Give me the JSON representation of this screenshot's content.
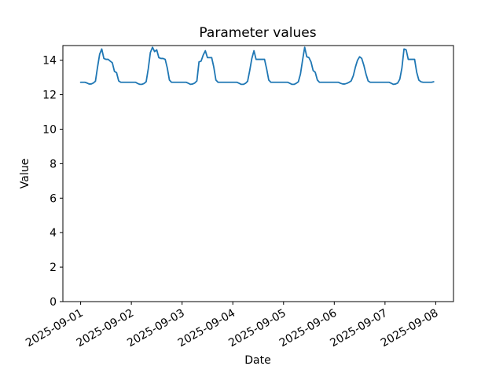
{
  "figure": {
    "background": "#ffffff",
    "frame_color": "#000000",
    "text_color": "#000000"
  },
  "chart_data": {
    "type": "line",
    "title": "Parameter values",
    "xlabel": "Date",
    "ylabel": "Value",
    "grid": false,
    "legend": "none",
    "line_color": "#1f77b4",
    "line_width": 1.8,
    "ylim": [
      0,
      14.85
    ],
    "xlim_hours": [
      -8.4,
      176.4
    ],
    "y_ticks": [
      0,
      2,
      4,
      6,
      8,
      10,
      12,
      14
    ],
    "x_tick_hours": [
      0,
      24,
      48,
      72,
      96,
      120,
      144,
      168
    ],
    "x_tick_labels": [
      "2025-09-01",
      "2025-09-02",
      "2025-09-03",
      "2025-09-04",
      "2025-09-05",
      "2025-09-06",
      "2025-09-07",
      "2025-09-08"
    ],
    "x_start": "2025-09-01 00:00",
    "x_step_hours": 1,
    "series": [
      {
        "values": [
          12.72,
          12.72,
          12.72,
          12.68,
          12.62,
          12.62,
          12.68,
          12.78,
          13.6,
          14.35,
          14.65,
          14.1,
          14.05,
          14.05,
          13.95,
          13.85,
          13.35,
          13.28,
          12.8,
          12.72,
          12.72,
          12.72,
          12.72,
          12.72,
          12.72,
          12.72,
          12.72,
          12.65,
          12.6,
          12.6,
          12.65,
          12.75,
          13.5,
          14.45,
          14.75,
          14.5,
          14.6,
          14.15,
          14.1,
          14.1,
          14.05,
          13.55,
          12.85,
          12.72,
          12.72,
          12.72,
          12.72,
          12.72,
          12.72,
          12.72,
          12.72,
          12.66,
          12.6,
          12.62,
          12.68,
          12.8,
          13.9,
          13.95,
          14.3,
          14.55,
          14.15,
          14.15,
          14.15,
          13.6,
          12.85,
          12.72,
          12.72,
          12.72,
          12.72,
          12.72,
          12.72,
          12.72,
          12.72,
          12.72,
          12.72,
          12.66,
          12.6,
          12.6,
          12.66,
          12.78,
          13.4,
          14.1,
          14.55,
          14.05,
          14.05,
          14.05,
          14.05,
          14.05,
          13.5,
          12.85,
          12.72,
          12.72,
          12.72,
          12.72,
          12.72,
          12.72,
          12.72,
          12.72,
          12.72,
          12.66,
          12.6,
          12.6,
          12.66,
          12.75,
          13.2,
          14.0,
          14.75,
          14.2,
          14.15,
          13.9,
          13.4,
          13.3,
          12.85,
          12.72,
          12.72,
          12.72,
          12.72,
          12.72,
          12.72,
          12.72,
          12.72,
          12.72,
          12.72,
          12.66,
          12.62,
          12.62,
          12.66,
          12.72,
          12.8,
          13.1,
          13.6,
          14.0,
          14.2,
          14.1,
          13.7,
          13.2,
          12.8,
          12.72,
          12.72,
          12.72,
          12.72,
          12.72,
          12.72,
          12.72,
          12.72,
          12.72,
          12.72,
          12.66,
          12.6,
          12.62,
          12.68,
          12.9,
          13.55,
          14.65,
          14.6,
          14.05,
          14.05,
          14.05,
          14.05,
          13.3,
          12.85,
          12.75,
          12.72,
          12.72,
          12.72,
          12.72,
          12.72,
          12.75
        ]
      }
    ]
  }
}
